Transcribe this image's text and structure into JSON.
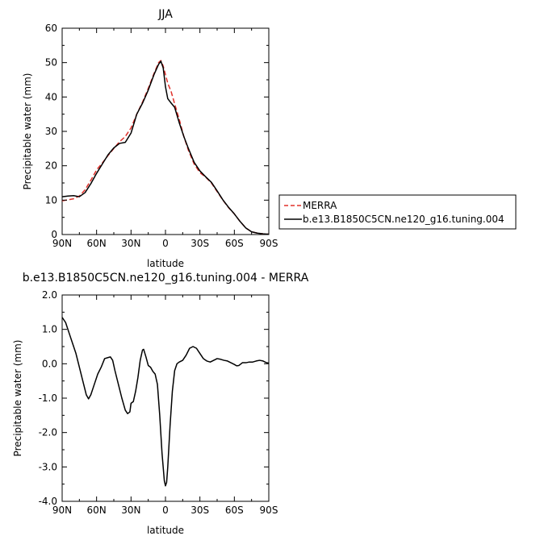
{
  "chart_data": [
    {
      "type": "line",
      "title": "JJA",
      "xlabel": "latitude",
      "ylabel": "Precipitable water (mm)",
      "xlim": [
        90,
        -90
      ],
      "ylim": [
        0,
        60
      ],
      "x_ticks": [
        90,
        60,
        30,
        0,
        -30,
        -60,
        -90
      ],
      "x_tick_labels": [
        "90N",
        "60N",
        "30N",
        "0",
        "30S",
        "60S",
        "90S"
      ],
      "y_ticks": [
        0,
        10,
        20,
        30,
        40,
        50,
        60
      ],
      "y_tick_labels": [
        "0",
        "10",
        "20",
        "30",
        "40",
        "50",
        "60"
      ],
      "legend_placement": "outside-right",
      "series": [
        {
          "name": "MERRA",
          "color": "#e0302a",
          "dash": "dashed",
          "points": [
            [
              90,
              9.8
            ],
            [
              85,
              10.1
            ],
            [
              80,
              10.4
            ],
            [
              75,
              11.2
            ],
            [
              70,
              13
            ],
            [
              65,
              15.8
            ],
            [
              60,
              18.8
            ],
            [
              55,
              20.8
            ],
            [
              50,
              23
            ],
            [
              45,
              25
            ],
            [
              40,
              27
            ],
            [
              35,
              28.5
            ],
            [
              30,
              31
            ],
            [
              25,
              35
            ],
            [
              20,
              38.5
            ],
            [
              15,
              42.5
            ],
            [
              10,
              46.8
            ],
            [
              6,
              50
            ],
            [
              4,
              50.6
            ],
            [
              2,
              49
            ],
            [
              0,
              46.5
            ],
            [
              -2,
              44
            ],
            [
              -5,
              41.5
            ],
            [
              -8,
              38
            ],
            [
              -12,
              33.5
            ],
            [
              -16,
              28.5
            ],
            [
              -20,
              24.5
            ],
            [
              -25,
              20.5
            ],
            [
              -30,
              18
            ],
            [
              -35,
              16.7
            ],
            [
              -40,
              15
            ],
            [
              -45,
              12.5
            ],
            [
              -50,
              10
            ],
            [
              -55,
              7.8
            ],
            [
              -60,
              6
            ],
            [
              -65,
              3.8
            ],
            [
              -70,
              1.9
            ],
            [
              -75,
              0.8
            ],
            [
              -80,
              0.4
            ],
            [
              -85,
              0.2
            ],
            [
              -90,
              0.1
            ]
          ]
        },
        {
          "name": "b.e13.B1850C5CN.ne120_g16.tuning.004",
          "color": "#000000",
          "dash": "solid",
          "points": [
            [
              90,
              11
            ],
            [
              85,
              11.2
            ],
            [
              80,
              11.3
            ],
            [
              75,
              11
            ],
            [
              70,
              12.2
            ],
            [
              65,
              14.8
            ],
            [
              60,
              17.8
            ],
            [
              55,
              20.5
            ],
            [
              50,
              23.2
            ],
            [
              45,
              25.2
            ],
            [
              40,
              26.5
            ],
            [
              35,
              26.8
            ],
            [
              30,
              29.5
            ],
            [
              25,
              35
            ],
            [
              20,
              38.2
            ],
            [
              15,
              42
            ],
            [
              10,
              46.5
            ],
            [
              6,
              49.5
            ],
            [
              4,
              50.4
            ],
            [
              2,
              48.5
            ],
            [
              0,
              43
            ],
            [
              -2,
              39.5
            ],
            [
              -5,
              38.2
            ],
            [
              -8,
              37
            ],
            [
              -12,
              32.5
            ],
            [
              -16,
              28.5
            ],
            [
              -20,
              25
            ],
            [
              -25,
              21
            ],
            [
              -30,
              18.5
            ],
            [
              -35,
              16.8
            ],
            [
              -40,
              15.2
            ],
            [
              -45,
              12.7
            ],
            [
              -50,
              10.1
            ],
            [
              -55,
              7.9
            ],
            [
              -60,
              6
            ],
            [
              -65,
              3.8
            ],
            [
              -70,
              1.9
            ],
            [
              -75,
              0.8
            ],
            [
              -80,
              0.4
            ],
            [
              -85,
              0.2
            ],
            [
              -90,
              0.1
            ]
          ]
        }
      ]
    },
    {
      "type": "line",
      "title": "b.e13.B1850C5CN.ne120_g16.tuning.004 - MERRA",
      "xlabel": "latitude",
      "ylabel": "Precipitable water (mm)",
      "xlim": [
        90,
        -90
      ],
      "ylim": [
        -4.0,
        2.0
      ],
      "x_ticks": [
        90,
        60,
        30,
        0,
        -30,
        -60,
        -90
      ],
      "x_tick_labels": [
        "90N",
        "60N",
        "30N",
        "0",
        "30S",
        "60S",
        "90S"
      ],
      "y_ticks": [
        -4,
        -3,
        -2,
        -1,
        0,
        1,
        2
      ],
      "y_tick_labels": [
        "-4.0",
        "-3.0",
        "-2.0",
        "-1.0",
        "0.0",
        "1.0",
        "2.0"
      ],
      "series": [
        {
          "color": "#000000",
          "dash": "solid",
          "points": [
            [
              90,
              1.35
            ],
            [
              87,
              1.2
            ],
            [
              84,
              0.9
            ],
            [
              81,
              0.6
            ],
            [
              78,
              0.3
            ],
            [
              75,
              -0.1
            ],
            [
              72,
              -0.5
            ],
            [
              69,
              -0.9
            ],
            [
              67,
              -1.02
            ],
            [
              65,
              -0.9
            ],
            [
              62,
              -0.6
            ],
            [
              59,
              -0.3
            ],
            [
              56,
              -0.1
            ],
            [
              53,
              0.15
            ],
            [
              50,
              0.18
            ],
            [
              48,
              0.2
            ],
            [
              46,
              0.1
            ],
            [
              44,
              -0.2
            ],
            [
              41,
              -0.6
            ],
            [
              38,
              -1.0
            ],
            [
              35,
              -1.35
            ],
            [
              33,
              -1.45
            ],
            [
              31,
              -1.4
            ],
            [
              30,
              -1.15
            ],
            [
              28,
              -1.1
            ],
            [
              26,
              -0.8
            ],
            [
              24,
              -0.4
            ],
            [
              22,
              0.1
            ],
            [
              20,
              0.4
            ],
            [
              19,
              0.42
            ],
            [
              17,
              0.2
            ],
            [
              15,
              -0.05
            ],
            [
              13,
              -0.1
            ],
            [
              11,
              -0.22
            ],
            [
              9,
              -0.3
            ],
            [
              7,
              -0.6
            ],
            [
              5,
              -1.5
            ],
            [
              3,
              -2.6
            ],
            [
              1,
              -3.4
            ],
            [
              0,
              -3.55
            ],
            [
              -1,
              -3.45
            ],
            [
              -2,
              -3.0
            ],
            [
              -4,
              -1.8
            ],
            [
              -6,
              -0.8
            ],
            [
              -8,
              -0.2
            ],
            [
              -10,
              0.0
            ],
            [
              -12,
              0.05
            ],
            [
              -15,
              0.1
            ],
            [
              -18,
              0.25
            ],
            [
              -21,
              0.45
            ],
            [
              -24,
              0.5
            ],
            [
              -27,
              0.45
            ],
            [
              -30,
              0.3
            ],
            [
              -33,
              0.15
            ],
            [
              -36,
              0.08
            ],
            [
              -39,
              0.05
            ],
            [
              -42,
              0.1
            ],
            [
              -45,
              0.15
            ],
            [
              -48,
              0.13
            ],
            [
              -51,
              0.1
            ],
            [
              -54,
              0.08
            ],
            [
              -57,
              0.03
            ],
            [
              -60,
              -0.02
            ],
            [
              -62,
              -0.06
            ],
            [
              -64,
              -0.05
            ],
            [
              -67,
              0.03
            ],
            [
              -70,
              0.03
            ],
            [
              -73,
              0.05
            ],
            [
              -76,
              0.05
            ],
            [
              -79,
              0.08
            ],
            [
              -82,
              0.1
            ],
            [
              -85,
              0.08
            ],
            [
              -88,
              0.03
            ],
            [
              -90,
              0.02
            ]
          ]
        }
      ]
    }
  ]
}
